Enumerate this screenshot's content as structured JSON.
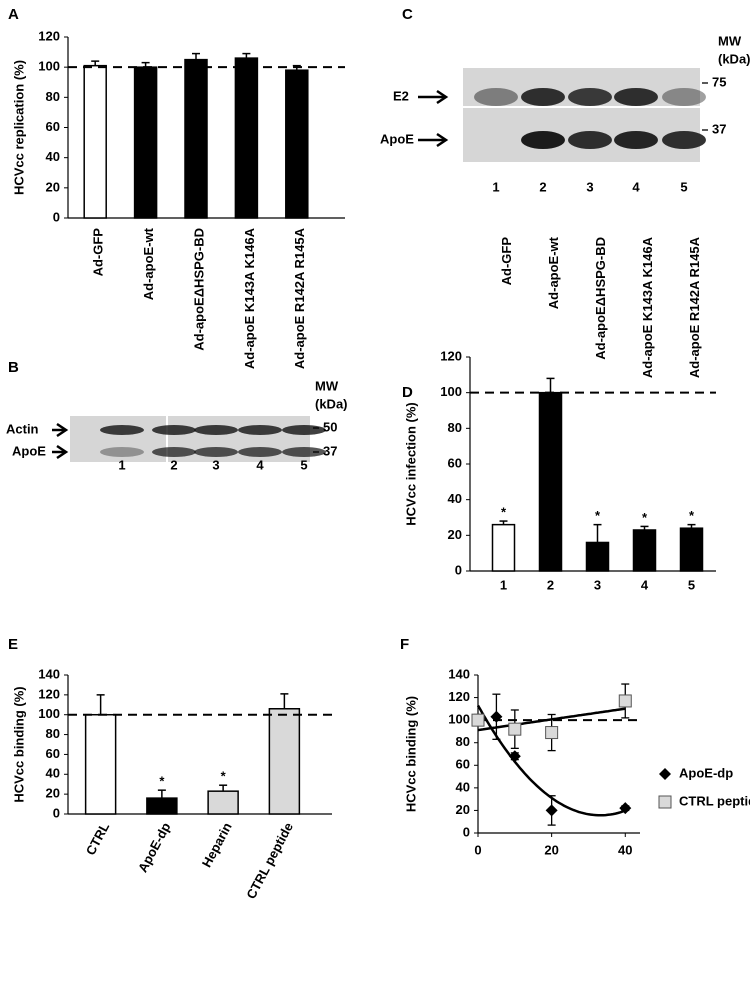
{
  "chart_data": [
    {
      "type": "bar",
      "panel": "A",
      "ylabel": "HCVcc replication (%)",
      "categories": [
        "Ad-GFP",
        "Ad-apoE-wt",
        "Ad-apoEΔHSPG-BD",
        "Ad-apoE K143A K146A",
        "Ad-apoE R142A R145A"
      ],
      "values": [
        101,
        100,
        105,
        106,
        98
      ],
      "errors": [
        3,
        3,
        4,
        3,
        3
      ],
      "colors": [
        "#ffffff",
        "#000000",
        "#000000",
        "#000000",
        "#000000"
      ],
      "ylim": [
        0,
        120
      ],
      "yticks": [
        0,
        20,
        40,
        60,
        80,
        100,
        120
      ],
      "reference_line": 100
    },
    {
      "type": "bar",
      "panel": "D",
      "ylabel": "HCVcc infection (%)",
      "categories": [
        "1",
        "2",
        "3",
        "4",
        "5"
      ],
      "top_labels": [
        "Ad-GFP",
        "Ad-apoE-wt",
        "Ad-apoEΔHSPG-BD",
        "Ad-apoE K143A K146A",
        "Ad-apoE R142A R145A"
      ],
      "values": [
        26,
        100,
        16,
        23,
        24
      ],
      "errors": [
        2,
        8,
        10,
        2,
        2
      ],
      "annotations": [
        "*",
        null,
        "*",
        "*",
        "*"
      ],
      "colors": [
        "#ffffff",
        "#000000",
        "#000000",
        "#000000",
        "#000000"
      ],
      "ylim": [
        0,
        120
      ],
      "yticks": [
        0,
        20,
        40,
        60,
        80,
        100,
        120
      ],
      "reference_line": 100
    },
    {
      "type": "bar",
      "panel": "E",
      "ylabel": "HCVcc binding (%)",
      "categories": [
        "CTRL",
        "ApoE-dp",
        "Heparin",
        "CTRL peptide"
      ],
      "values": [
        100,
        16,
        23,
        106
      ],
      "errors": [
        20,
        8,
        6,
        15
      ],
      "annotations": [
        null,
        "*",
        "*",
        null
      ],
      "colors": [
        "#ffffff",
        "#000000",
        "#d9d9d9",
        "#d9d9d9"
      ],
      "ylim": [
        0,
        140
      ],
      "yticks": [
        0,
        20,
        40,
        60,
        80,
        100,
        120,
        140
      ],
      "reference_line": 100
    },
    {
      "type": "scatter",
      "panel": "F",
      "ylabel": "HCVcc binding (%)",
      "series": [
        {
          "name": "ApoE-dp",
          "color": "#000000",
          "marker": "diamond",
          "trend": "polynomial",
          "x": [
            0,
            5,
            10,
            20,
            40
          ],
          "values": [
            100,
            103,
            68,
            20,
            22
          ],
          "errors": [
            3,
            20,
            3,
            13,
            2
          ]
        },
        {
          "name": "CTRL peptide",
          "color": "#d9d9d9",
          "marker": "square",
          "trend": "linear",
          "x": [
            0,
            10,
            20,
            40
          ],
          "values": [
            100,
            92,
            89,
            117
          ],
          "errors": [
            5,
            17,
            16,
            15
          ]
        }
      ],
      "xlim": [
        0,
        44
      ],
      "xticks": [
        0,
        20,
        40
      ],
      "ylim": [
        0,
        140
      ],
      "yticks": [
        0,
        20,
        40,
        60,
        80,
        100,
        120,
        140
      ],
      "reference_line": 100,
      "legend": "right"
    }
  ],
  "blots": [
    {
      "panel": "B",
      "rows": [
        "Actin",
        "ApoE"
      ],
      "lanes": [
        "1",
        "2",
        "3",
        "4",
        "5"
      ],
      "mw_title": "MW",
      "mw_unit": "(kDa)",
      "mw_markers": [
        "50",
        "37"
      ]
    },
    {
      "panel": "C",
      "rows": [
        "E2",
        "ApoE"
      ],
      "lanes": [
        "1",
        "2",
        "3",
        "4",
        "5"
      ],
      "mw_title": "MW",
      "mw_unit": "(kDa)",
      "mw_markers": [
        "75",
        "37"
      ]
    }
  ]
}
